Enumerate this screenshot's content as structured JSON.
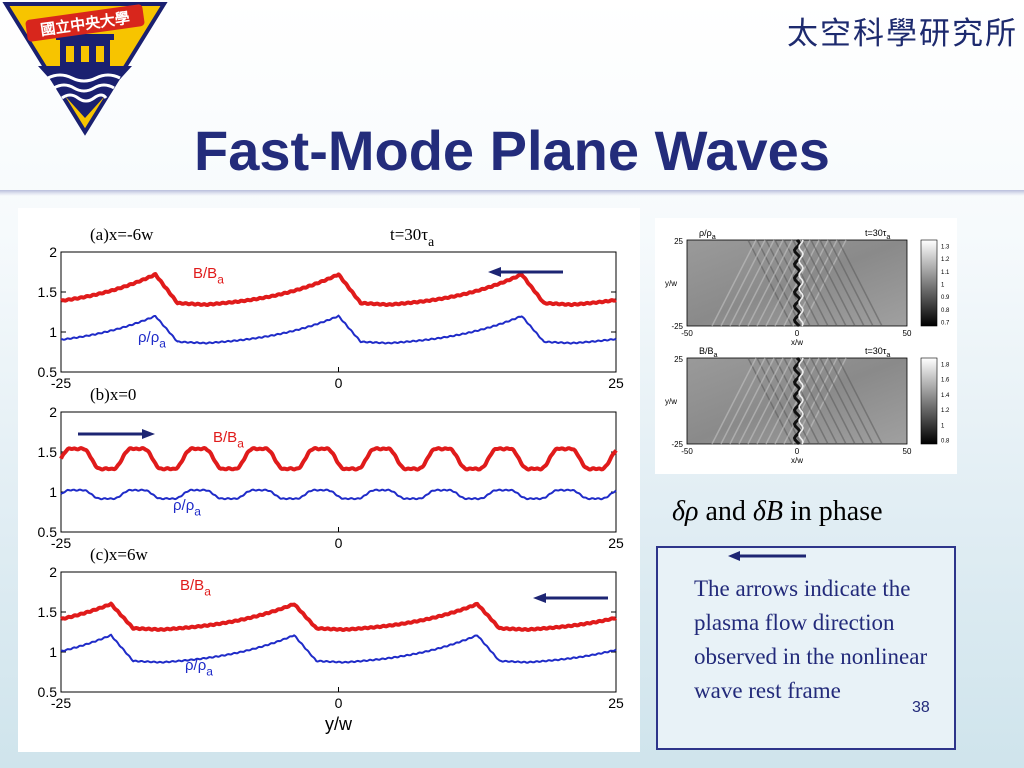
{
  "slide": {
    "institute": "太空科學研究所",
    "logo_text": "國立中央大學",
    "title": "Fast-Mode Plane Waves",
    "phase_caption": {
      "drho": "δρ",
      "and": " and ",
      "dB": "δB",
      "rest": " in phase"
    },
    "note_text": "The arrows indicate the plasma flow direction observed in the nonlinear wave rest frame",
    "page_number": "38"
  },
  "colors": {
    "title": "#232c7b",
    "b_curve": "#e01b1b",
    "rho_curve": "#1f2bc8",
    "arrow": "#1d2573"
  },
  "chart_data": [
    {
      "type": "line",
      "panel_label": "(a)x=-6w",
      "time_label": "t=30τ",
      "time_subscript": "a",
      "arrow_direction": "left",
      "xlim": [
        -25,
        25
      ],
      "ylim": [
        0.5,
        2
      ],
      "xticks": [
        "-25",
        "0",
        "25"
      ],
      "yticks": [
        "0.5",
        "1",
        "1.5",
        "2"
      ],
      "series": [
        {
          "name": "B/B",
          "sub": "a",
          "period": 16.5,
          "min": 1.33,
          "max": 1.72,
          "peak_x": [
            -16.5,
            0,
            16.5
          ]
        },
        {
          "name": "ρ/ρ",
          "sub": "a",
          "period": 16.5,
          "min": 0.85,
          "max": 1.2,
          "peak_x": [
            -16.5,
            0,
            16.5
          ]
        }
      ]
    },
    {
      "type": "line",
      "panel_label": "(b)x=0",
      "arrow_direction": "right",
      "xlim": [
        -25,
        25
      ],
      "ylim": [
        0.5,
        2
      ],
      "xticks": [
        "-25",
        "0",
        "25"
      ],
      "yticks": [
        "0.5",
        "1",
        "1.5",
        "2"
      ],
      "series": [
        {
          "name": "B/B",
          "sub": "a",
          "period": 5.5,
          "min": 1.25,
          "max": 1.58,
          "peak_x": []
        },
        {
          "name": "ρ/ρ",
          "sub": "a",
          "period": 5.5,
          "min": 0.9,
          "max": 1.04,
          "peak_x": []
        }
      ]
    },
    {
      "type": "line",
      "panel_label": "(c)x=6w",
      "arrow_direction": "left",
      "xlim": [
        -25,
        25
      ],
      "ylim": [
        0.5,
        2
      ],
      "xticks": [
        "-25",
        "0",
        "25"
      ],
      "yticks": [
        "0.5",
        "1",
        "1.5",
        "2"
      ],
      "xlabel": "y/w",
      "series": [
        {
          "name": "B/B",
          "sub": "a",
          "period": 16.5,
          "min": 1.27,
          "max": 1.6,
          "peak_x": [
            -20.5,
            -4,
            12.5
          ]
        },
        {
          "name": "ρ/ρ",
          "sub": "a",
          "period": 16.5,
          "min": 0.86,
          "max": 1.21,
          "peak_x": [
            -20.5,
            -4,
            12.5
          ]
        }
      ]
    },
    {
      "type": "heatmap",
      "label": "ρ/ρ",
      "sub": "a",
      "time_label": "t=30τ",
      "time_subscript": "a",
      "xlabel": "x/w",
      "ylabel": "y/w",
      "xticks": [
        "-50",
        "0",
        "50"
      ],
      "yticks": [
        "25",
        "-25"
      ],
      "colorbar_ticks": [
        "1.3",
        "1.2",
        "1.1",
        "1",
        "0.9",
        "0.8",
        "0.7"
      ]
    },
    {
      "type": "heatmap",
      "label": "B/B",
      "sub": "a",
      "time_label": "t=30τ",
      "time_subscript": "a",
      "xlabel": "x/w",
      "ylabel": "y/w",
      "xticks": [
        "-50",
        "0",
        "50"
      ],
      "yticks": [
        "25",
        "-25"
      ],
      "colorbar_ticks": [
        "1.8",
        "1.6",
        "1.4",
        "1.2",
        "1",
        "0.8"
      ]
    }
  ]
}
